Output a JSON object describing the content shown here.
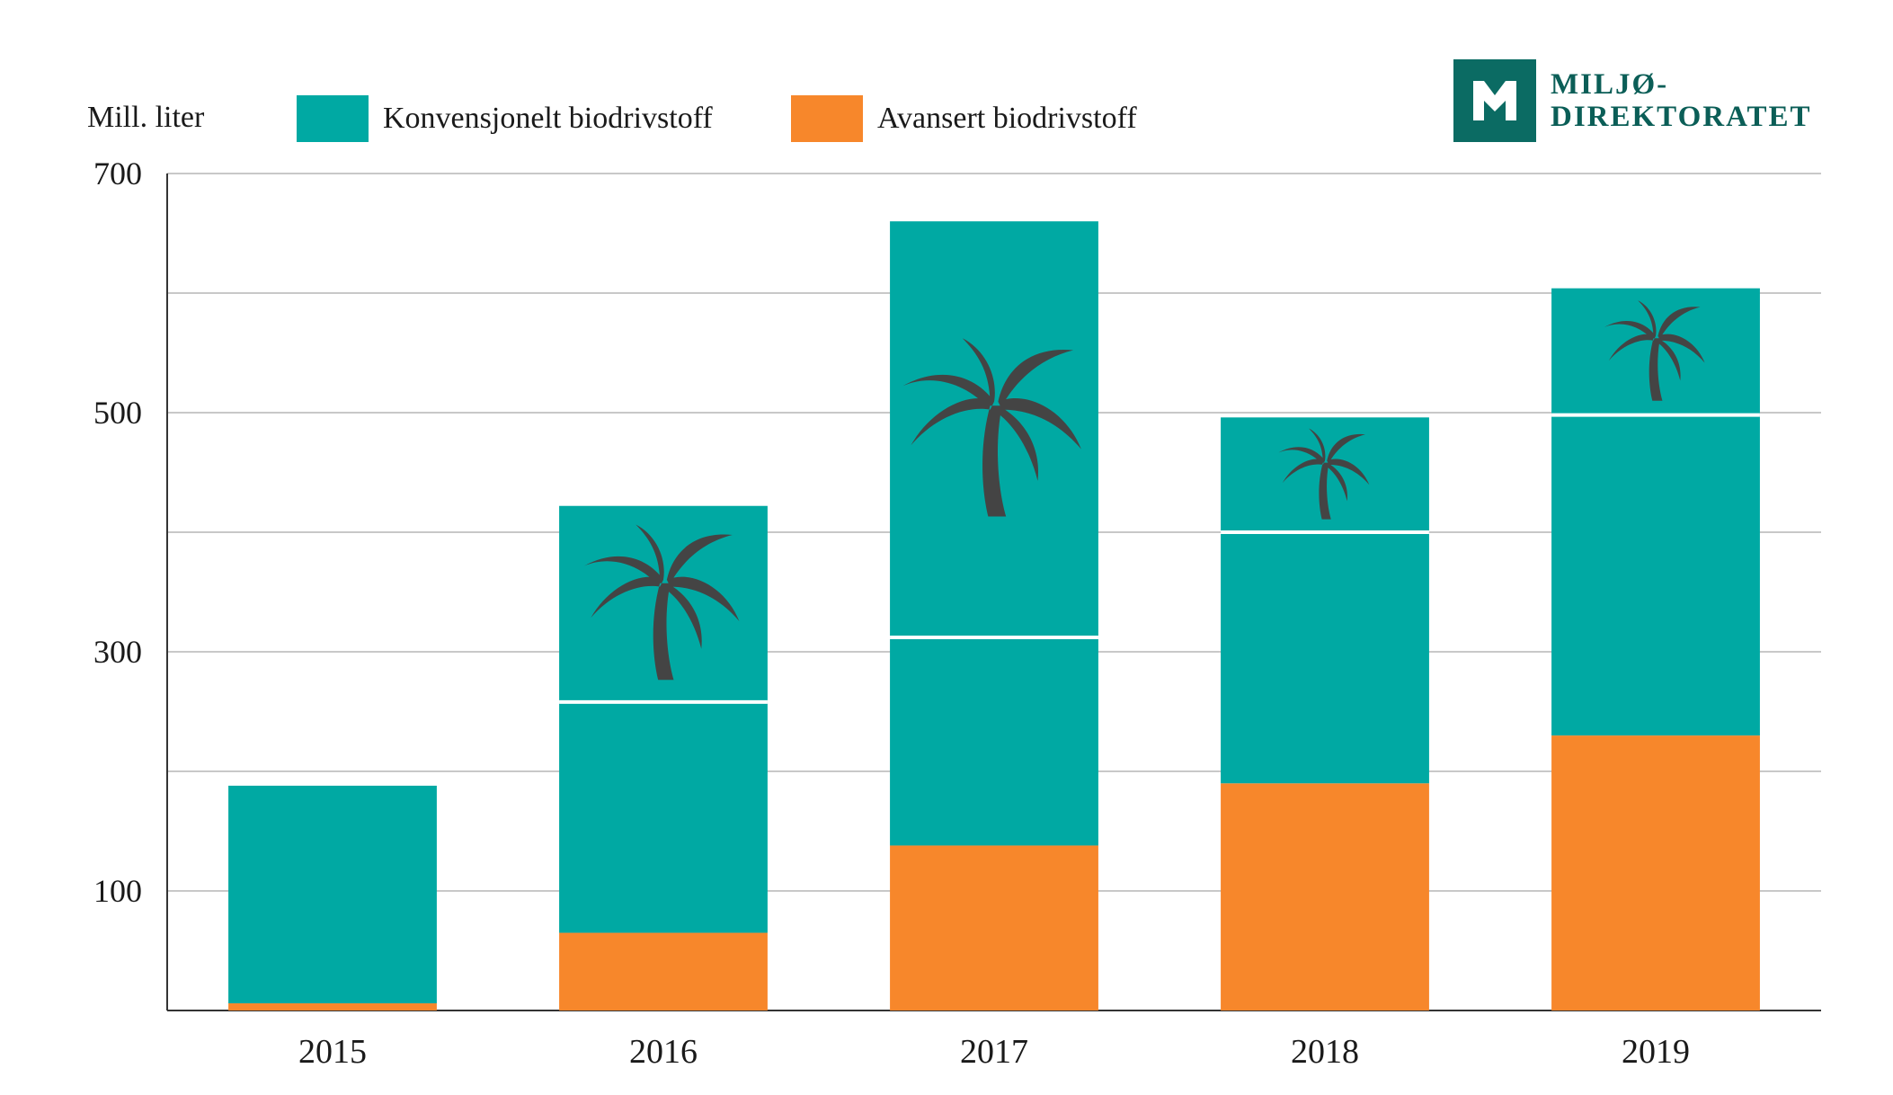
{
  "unit_label": "Mill. liter",
  "colors": {
    "conventional": "#00a9a3",
    "advanced": "#f7872b",
    "palm": "#444444",
    "grid": "#c8c8c8",
    "axis": "#333333",
    "logo": "#0b6b63"
  },
  "logo": {
    "line1": "MILJØ-",
    "line2": "DIREKTORATET"
  },
  "chart_data": {
    "type": "bar",
    "stacked": true,
    "title": "",
    "xlabel": "",
    "ylabel": "Mill. liter",
    "ylim": [
      0,
      700
    ],
    "yticks": [
      100,
      300,
      500,
      700
    ],
    "gridlines": [
      100,
      200,
      300,
      400,
      500,
      600,
      700
    ],
    "grid": true,
    "legend_position": "top",
    "categories": [
      "2015",
      "2016",
      "2017",
      "2018",
      "2019"
    ],
    "series": [
      {
        "name": "Avansert biodrivstoff",
        "key": "advanced",
        "values": [
          6,
          65,
          138,
          190,
          230
        ]
      },
      {
        "name": "Konvensjonelt biodrivstoff",
        "key": "conventional",
        "values": [
          182,
          357,
          522,
          306,
          374
        ]
      }
    ],
    "palm_oil_based_share": [
      0,
      164,
      348,
      96,
      106
    ],
    "annotations": "Palm tree icons mark the palm-oil based portion at the top of the conventional segment, separated by a white line."
  }
}
